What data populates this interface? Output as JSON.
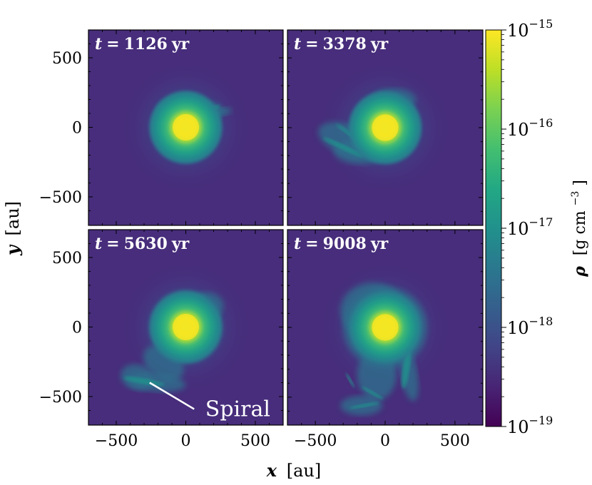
{
  "chart_data": {
    "type": "heatmap",
    "panels": [
      {
        "time_label_var": "t",
        "time_label_eq": "=",
        "time_label_value": "1126",
        "time_label_unit": "yr"
      },
      {
        "time_label_var": "t",
        "time_label_eq": "=",
        "time_label_value": "3378",
        "time_label_unit": "yr"
      },
      {
        "time_label_var": "t",
        "time_label_eq": "=",
        "time_label_value": "5630",
        "time_label_unit": "yr"
      },
      {
        "time_label_var": "t",
        "time_label_eq": "=",
        "time_label_value": "9008",
        "time_label_unit": "yr"
      }
    ],
    "xlim": [
      -700,
      700
    ],
    "ylim": [
      -700,
      700
    ],
    "xticks": [
      -500,
      0,
      500
    ],
    "yticks": [
      -500,
      0,
      500
    ],
    "xtick_labels": [
      "−500",
      "0",
      "500"
    ],
    "ytick_labels": [
      "500",
      "0",
      "−500"
    ],
    "xlabel_var": "x",
    "xlabel_unit": "[au]",
    "ylabel_var": "y",
    "ylabel_unit": "[au]",
    "annotation": "Spiral",
    "colorbar": {
      "label_var": "ρ",
      "label_unit": "[g cm",
      "label_exp": "−3",
      "label_close": "]",
      "scale": "log",
      "range": [
        -19,
        -15
      ],
      "ticks": [
        {
          "exp": -15,
          "base": "10",
          "sup": "−15"
        },
        {
          "exp": -16,
          "base": "10",
          "sup": "−16"
        },
        {
          "exp": -17,
          "base": "10",
          "sup": "−17"
        },
        {
          "exp": -18,
          "base": "10",
          "sup": "−18"
        },
        {
          "exp": -19,
          "base": "10",
          "sup": "−19"
        }
      ],
      "colormap": "viridis"
    },
    "colors": {
      "background": "#472d7b",
      "core": "#fde725",
      "envelope": "#21918c",
      "mid": "#2c728e",
      "outer": "#3b528b"
    }
  }
}
